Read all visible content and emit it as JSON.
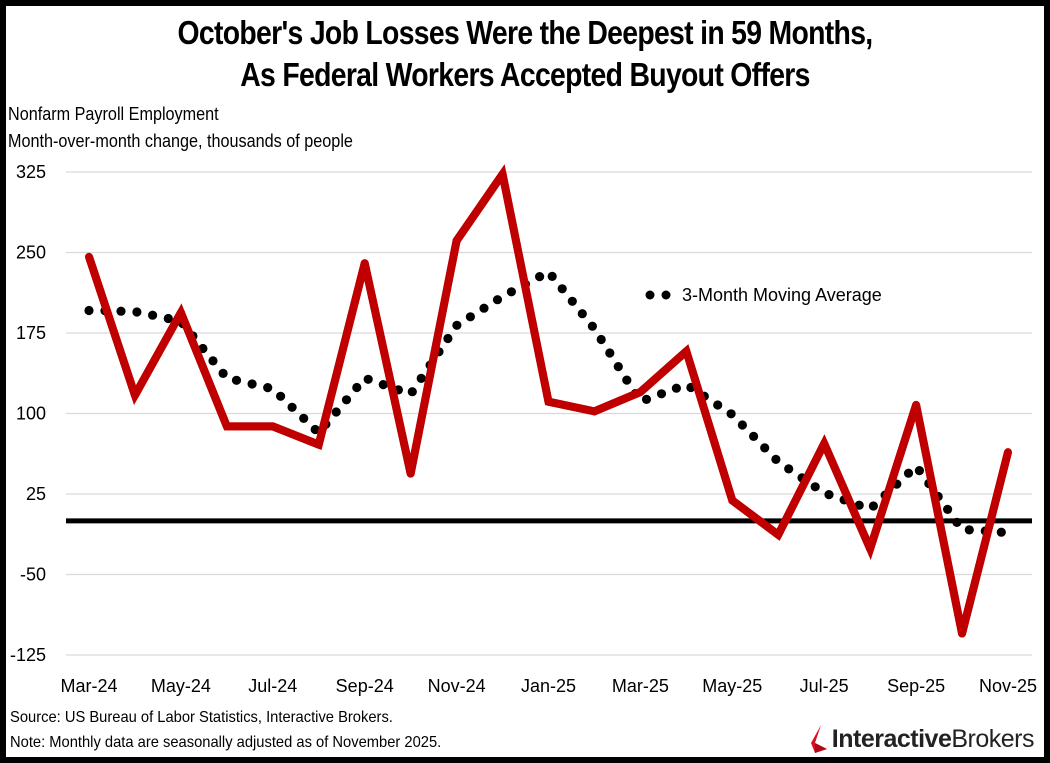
{
  "title": {
    "line1": "October's Job Losses Were the Deepest in 59 Months,",
    "line2": "As Federal Workers Accepted Buyout Offers"
  },
  "subtitle": {
    "line1": "Nonfarm Payroll Employment",
    "line2": "Month-over-month change, thousands of people"
  },
  "footer": {
    "source": "Source: US Bureau of Labor Statistics, Interactive Brokers.",
    "note": "Note: Monthly data are seasonally adjusted as of November 2025."
  },
  "logo": {
    "bold": "Interactive",
    "regular": "Brokers",
    "icon": "interactive-brokers-logo-icon"
  },
  "colors": {
    "series": "#C00000",
    "average": "#000000",
    "zero_line": "#000000",
    "grid": "#D9D9D9"
  },
  "chart_data": {
    "type": "line",
    "title": "October's Job Losses Were the Deepest in 59 Months, As Federal Workers Accepted Buyout Offers",
    "subtitle": "Nonfarm Payroll Employment — Month-over-month change, thousands of people",
    "xlabel": "",
    "ylabel": "Month-over-month change, thousands of people",
    "ylim": [
      -125,
      325
    ],
    "yticks": [
      325,
      250,
      175,
      100,
      25,
      -50,
      -125
    ],
    "grid": true,
    "x": [
      "Mar-24",
      "Apr-24",
      "May-24",
      "Jun-24",
      "Jul-24",
      "Aug-24",
      "Sep-24",
      "Oct-24",
      "Nov-24",
      "Dec-24",
      "Jan-25",
      "Feb-25",
      "Mar-25",
      "Apr-25",
      "May-25",
      "Jun-25",
      "Jul-25",
      "Aug-25",
      "Sep-25",
      "Oct-25",
      "Nov-25"
    ],
    "xtick_labels": [
      "Mar-24",
      "May-24",
      "Jul-24",
      "Sep-24",
      "Nov-24",
      "Jan-25",
      "Mar-25",
      "May-25",
      "Jul-25",
      "Sep-25",
      "Nov-25"
    ],
    "series": [
      {
        "name": "Nonfarm Payroll Employment (MoM change)",
        "style": "solid",
        "values": [
          246,
          117,
          194,
          88,
          88,
          71,
          240,
          44,
          261,
          323,
          111,
          102,
          120,
          158,
          19,
          -13,
          72,
          -26,
          108,
          -105,
          64
        ]
      },
      {
        "name": "3-Month Moving Average",
        "style": "dotted",
        "values": [
          196,
          195,
          186,
          133,
          123,
          82,
          133,
          118,
          182,
          209,
          232,
          179,
          111,
          127,
          99,
          55,
          26,
          11,
          51,
          -8,
          -11
        ]
      }
    ],
    "reference_line": {
      "value": 0,
      "label": "zero"
    },
    "legend": {
      "entries": [
        "3-Month Moving Average"
      ],
      "placement": "top-right, inside plot"
    }
  }
}
